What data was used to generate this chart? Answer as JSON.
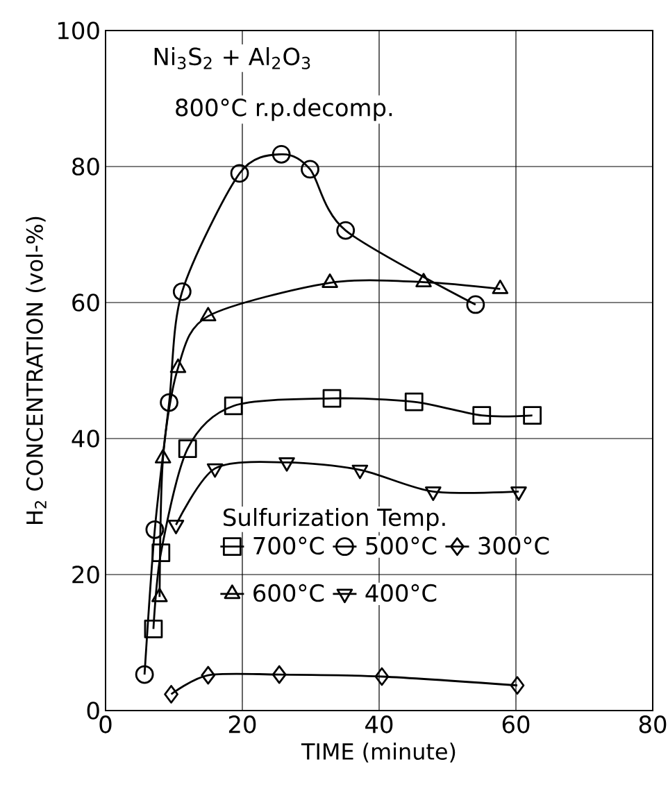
{
  "chart_data": {
    "type": "line",
    "xlabel": "TIME (minute)",
    "ylabel": "H$_{2}$ CONCENTRATION (vol-%)",
    "annotations": [
      "Ni$_{3}$S$_{2}$ + Al$_{2}$O$_{3}$",
      "800°C r.p.decomp."
    ],
    "legend_title": "Sulfurization Temp.",
    "legend": "center",
    "xlim": [
      0,
      80
    ],
    "xticks": [
      0,
      20,
      40,
      60,
      80
    ],
    "ylim": [
      0,
      100
    ],
    "yticks": [
      0,
      20,
      40,
      60,
      80,
      100
    ],
    "grid": true,
    "series": [
      {
        "name": "700°C",
        "color": "#000000",
        "marker": "square",
        "x": [
          7.0,
          8.1,
          12.0,
          18.7,
          33.1,
          45.1,
          55.0,
          62.4
        ],
        "values": [
          12.0,
          23.2,
          38.5,
          44.8,
          45.9,
          45.4,
          43.4,
          43.4
        ]
      },
      {
        "name": "500°C",
        "color": "#000000",
        "marker": "circle",
        "x": [
          5.7,
          7.2,
          9.3,
          11.2,
          19.6,
          25.7,
          29.9,
          35.1,
          54.1
        ],
        "values": [
          5.3,
          26.6,
          45.3,
          61.6,
          79.0,
          81.8,
          79.6,
          70.6,
          59.7
        ]
      },
      {
        "name": "300°C",
        "color": "#000000",
        "marker": "diamond",
        "x": [
          9.6,
          15.0,
          25.4,
          40.4,
          60.2
        ],
        "values": [
          2.4,
          5.2,
          5.3,
          5.0,
          3.7
        ]
      },
      {
        "name": "600°C",
        "color": "#000000",
        "marker": "triangle",
        "x": [
          7.9,
          8.4,
          10.6,
          15.0,
          32.8,
          46.5,
          57.7
        ],
        "values": [
          16.7,
          37.1,
          50.4,
          58.0,
          62.9,
          63.0,
          62.0
        ]
      },
      {
        "name": "400°C",
        "color": "#000000",
        "marker": "triangle down",
        "x": [
          10.3,
          16.0,
          26.5,
          37.2,
          47.9,
          60.4
        ],
        "values": [
          27.3,
          35.6,
          36.5,
          35.4,
          32.2,
          32.2
        ]
      }
    ]
  }
}
